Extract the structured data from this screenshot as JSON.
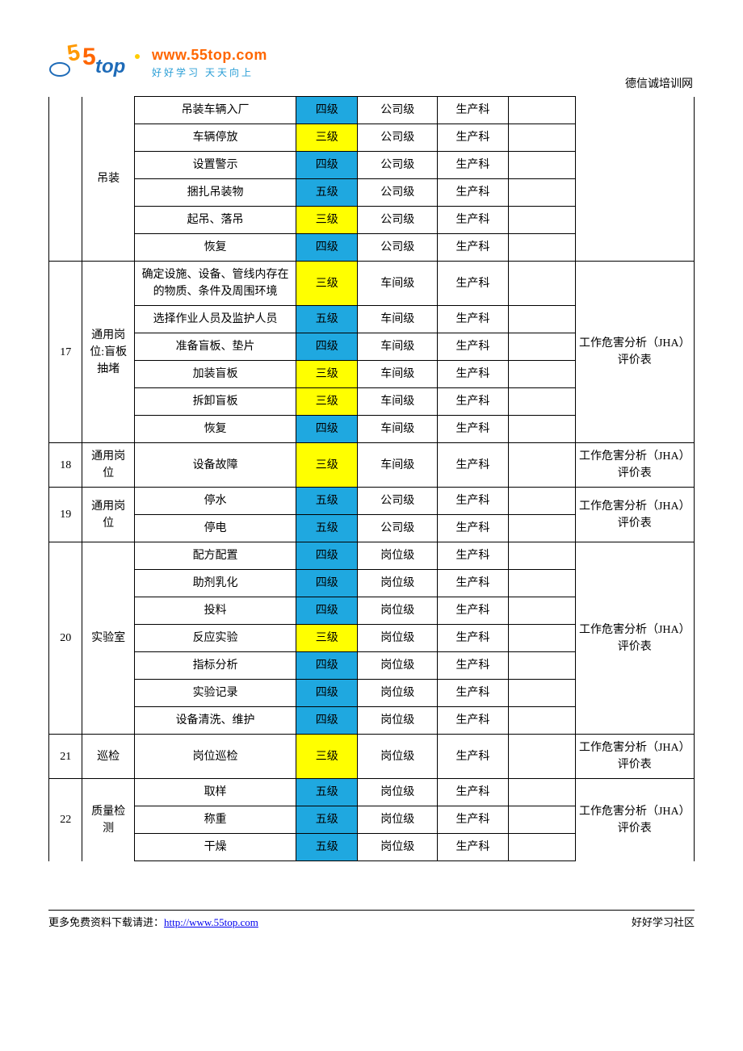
{
  "colors": {
    "yellow": "#ffff00",
    "blue": "#1fa8e0",
    "border": "#000000",
    "link": "#0000ee",
    "logo_orange": "#ff6600",
    "logo_blue": "#2a9ed6"
  },
  "logo": {
    "url": "www.55top.com",
    "tagline": "好好学习  天天向上"
  },
  "header_right": "德信诚培训网",
  "footer_left_prefix": "更多免费资料下载请进：",
  "footer_link_text": "http://www.55top.com",
  "footer_right": "好好学习社区",
  "groups": [
    {
      "idx": "",
      "pos": "吊装",
      "note": "",
      "continued": true,
      "rows": [
        {
          "task": "吊装车辆入厂",
          "level": "四级",
          "level_color": "blue",
          "org": "公司级",
          "dept": "生产科"
        },
        {
          "task": "车辆停放",
          "level": "三级",
          "level_color": "yellow",
          "org": "公司级",
          "dept": "生产科"
        },
        {
          "task": "设置警示",
          "level": "四级",
          "level_color": "blue",
          "org": "公司级",
          "dept": "生产科"
        },
        {
          "task": "捆扎吊装物",
          "level": "五级",
          "level_color": "blue",
          "org": "公司级",
          "dept": "生产科"
        },
        {
          "task": "起吊、落吊",
          "level": "三级",
          "level_color": "yellow",
          "org": "公司级",
          "dept": "生产科"
        },
        {
          "task": "恢复",
          "level": "四级",
          "level_color": "blue",
          "org": "公司级",
          "dept": "生产科"
        }
      ]
    },
    {
      "idx": "17",
      "pos": "通用岗位:盲板抽堵",
      "note": "工作危害分析（JHA）评价表",
      "rows": [
        {
          "task": "确定设施、设备、管线内存在的物质、条件及周围环境",
          "level": "三级",
          "level_color": "yellow",
          "org": "车间级",
          "dept": "生产科"
        },
        {
          "task": "选择作业人员及监护人员",
          "level": "五级",
          "level_color": "blue",
          "org": "车间级",
          "dept": "生产科"
        },
        {
          "task": "准备盲板、垫片",
          "level": "四级",
          "level_color": "blue",
          "org": "车间级",
          "dept": "生产科"
        },
        {
          "task": "加装盲板",
          "level": "三级",
          "level_color": "yellow",
          "org": "车间级",
          "dept": "生产科"
        },
        {
          "task": "拆卸盲板",
          "level": "三级",
          "level_color": "yellow",
          "org": "车间级",
          "dept": "生产科"
        },
        {
          "task": "恢复",
          "level": "四级",
          "level_color": "blue",
          "org": "车间级",
          "dept": "生产科"
        }
      ]
    },
    {
      "idx": "18",
      "pos": "通用岗位",
      "note": "工作危害分析（JHA）评价表",
      "rows": [
        {
          "task": "设备故障",
          "level": "三级",
          "level_color": "yellow",
          "org": "车间级",
          "dept": "生产科"
        }
      ]
    },
    {
      "idx": "19",
      "pos": "通用岗位",
      "note": "工作危害分析（JHA）评价表",
      "rows": [
        {
          "task": "停水",
          "level": "五级",
          "level_color": "blue",
          "org": "公司级",
          "dept": "生产科"
        },
        {
          "task": "停电",
          "level": "五级",
          "level_color": "blue",
          "org": "公司级",
          "dept": "生产科"
        }
      ]
    },
    {
      "idx": "20",
      "pos": "实验室",
      "note": "工作危害分析（JHA）评价表",
      "rows": [
        {
          "task": "配方配置",
          "level": "四级",
          "level_color": "blue",
          "org": "岗位级",
          "dept": "生产科"
        },
        {
          "task": "助剂乳化",
          "level": "四级",
          "level_color": "blue",
          "org": "岗位级",
          "dept": "生产科"
        },
        {
          "task": "投料",
          "level": "四级",
          "level_color": "blue",
          "org": "岗位级",
          "dept": "生产科"
        },
        {
          "task": "反应实验",
          "level": "三级",
          "level_color": "yellow",
          "org": "岗位级",
          "dept": "生产科"
        },
        {
          "task": "指标分析",
          "level": "四级",
          "level_color": "blue",
          "org": "岗位级",
          "dept": "生产科"
        },
        {
          "task": "实验记录",
          "level": "四级",
          "level_color": "blue",
          "org": "岗位级",
          "dept": "生产科"
        },
        {
          "task": "设备清洗、维护",
          "level": "四级",
          "level_color": "blue",
          "org": "岗位级",
          "dept": "生产科"
        }
      ]
    },
    {
      "idx": "21",
      "pos": "巡检",
      "note": "工作危害分析（JHA）评价表",
      "rows": [
        {
          "task": "岗位巡检",
          "level": "三级",
          "level_color": "yellow",
          "org": "岗位级",
          "dept": "生产科"
        }
      ]
    },
    {
      "idx": "22",
      "pos": "质量检测",
      "note": "工作危害分析（JHA）评价表",
      "continues_down": true,
      "rows": [
        {
          "task": "取样",
          "level": "五级",
          "level_color": "blue",
          "org": "岗位级",
          "dept": "生产科"
        },
        {
          "task": "称重",
          "level": "五级",
          "level_color": "blue",
          "org": "岗位级",
          "dept": "生产科"
        },
        {
          "task": "干燥",
          "level": "五级",
          "level_color": "blue",
          "org": "岗位级",
          "dept": "生产科"
        }
      ]
    }
  ]
}
